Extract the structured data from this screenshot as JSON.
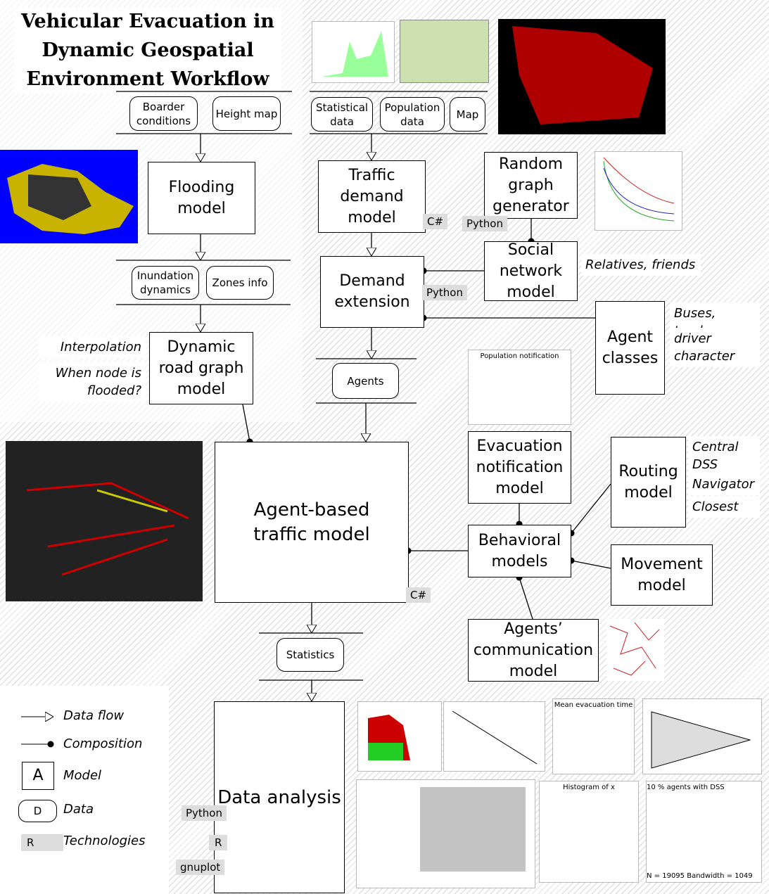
{
  "title": "Vehicular Evacuation in Dynamic Geospatial Environment Workflow",
  "models": [
    "Flooding model",
    "Traffic demand model",
    "Random graph generator",
    "Demand extension",
    "Social network model",
    "Dynamic road graph model",
    "Agent classes",
    "Agent-based traffic model",
    "Evacuation notification model",
    "Routing model",
    "Behavioral models",
    "Movement model",
    "Agents’ communication model",
    "Data analysis"
  ],
  "data_items": [
    "Boarder conditions",
    "Height map",
    "Statistical data",
    "Population data",
    "Map",
    "Inundation dynamics",
    "Zones info",
    "Agents",
    "Statistics"
  ],
  "technologies": [
    "C#",
    "Python",
    "Python",
    "C#",
    "Python",
    "R",
    "gnuplot"
  ],
  "annotations": [
    "Relatives, friends",
    "Buses, trucks",
    "driver character",
    "Interpolation",
    "When node is flooded?",
    "Central DSS",
    "Navigator",
    "Closest"
  ],
  "legend": [
    {
      "symbol": "",
      "label": "Data flow"
    },
    {
      "symbol": "",
      "label": "Composition"
    },
    {
      "symbol": "A",
      "label": "Model"
    },
    {
      "symbol": "D",
      "label": "Data"
    },
    {
      "symbol": "R",
      "label": "Technologies"
    }
  ],
  "thumbnails": [
    "Population notification",
    "Mean evacuation time",
    "Histogram of x",
    "10 % agents with DSS",
    "N = 19095  Bandwidth = 1049"
  ]
}
